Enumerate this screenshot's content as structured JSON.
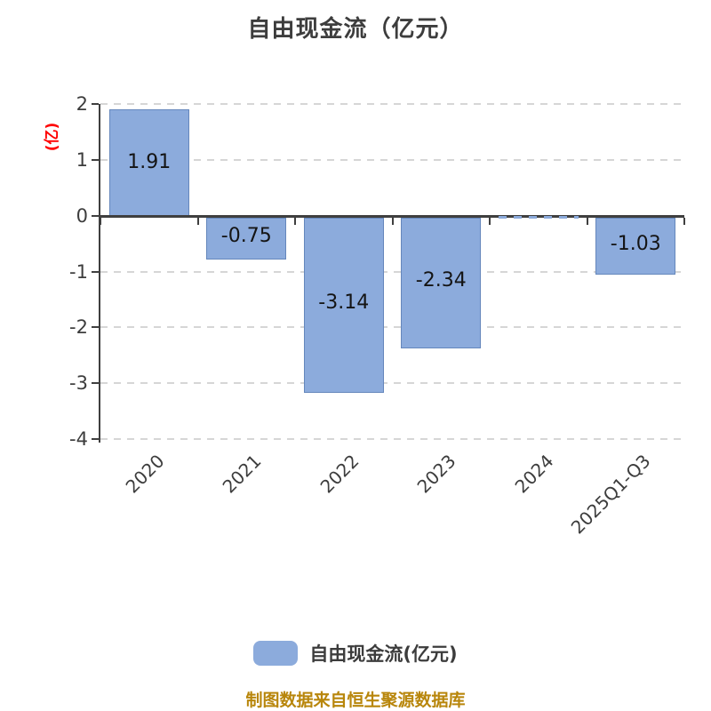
{
  "title": "自由现金流（亿元）",
  "footer": "制图数据来自恒生聚源数据库",
  "legend": {
    "label": "自由现金流(亿元)",
    "swatch_color": "#8cabdc",
    "swatch_name": "series-color-swatch"
  },
  "colors": {
    "bar_fill": "#8cabdc",
    "bar_border": "#6587bc",
    "axis": "#3f3f3f",
    "gridline": "#d6d6d6",
    "tick_text": "#3d3d3d",
    "value_label_text": "#141414",
    "y_axis_title_red": "#ff0000",
    "footer_orange": "#b8860b",
    "title_text": "#3d3d3d"
  },
  "chart_data": {
    "type": "bar",
    "title": "自由现金流（亿元）",
    "xlabel": "",
    "ylabel": "(亿)",
    "series_name": "自由现金流(亿元)",
    "categories": [
      "2020",
      "2021",
      "2022",
      "2023",
      "2024",
      "2025Q1-Q3"
    ],
    "values": [
      1.91,
      -0.75,
      -3.14,
      -2.34,
      0,
      -1.03
    ],
    "bar_labels": [
      "1.91",
      "-0.75",
      "-3.14",
      "-2.34",
      "",
      "-1.03"
    ],
    "ylim": [
      -4,
      2
    ],
    "yticks": [
      2,
      1,
      0,
      -1,
      -2,
      -3,
      -4
    ],
    "grid": "horizontal-dashed",
    "legend_position": "bottom-center",
    "x_label_rotation_deg": 45
  }
}
